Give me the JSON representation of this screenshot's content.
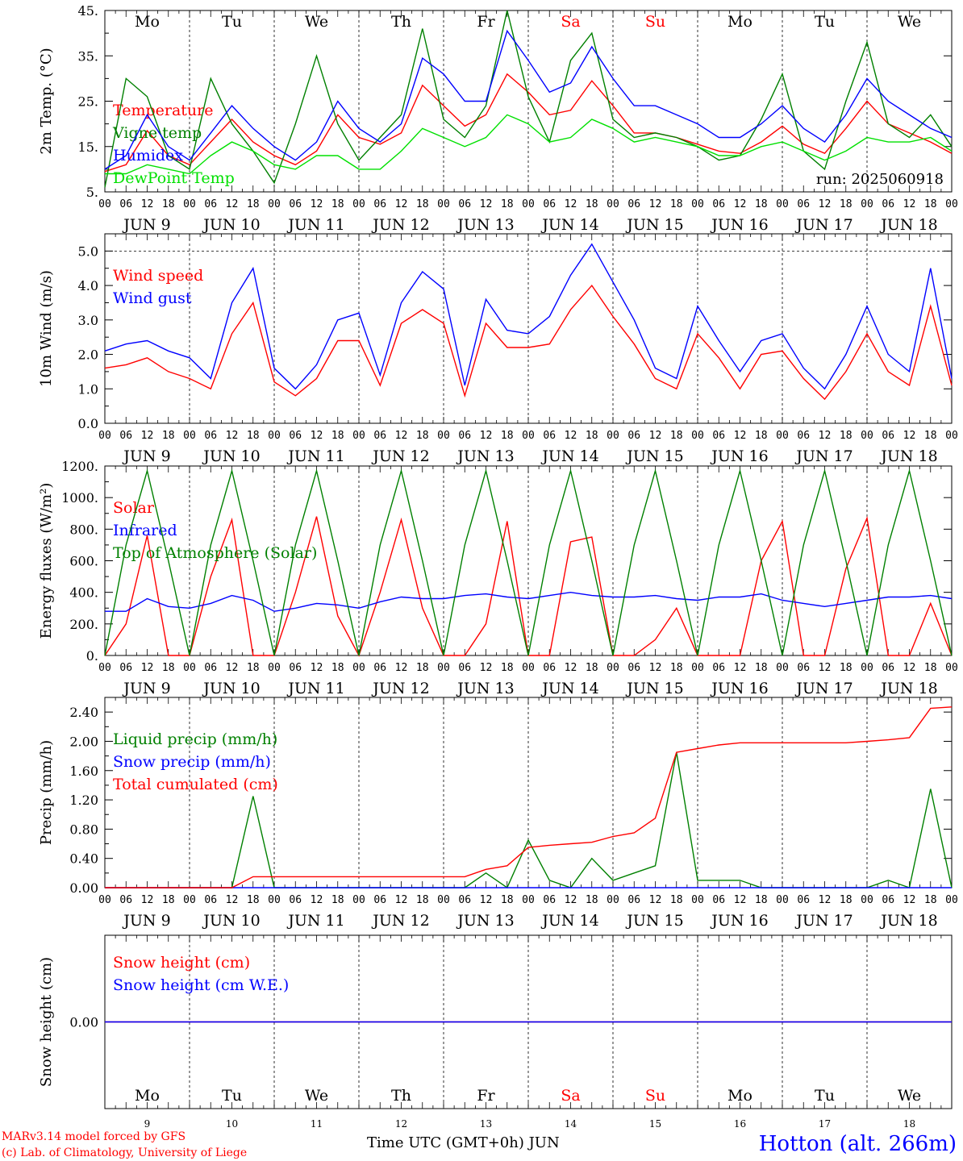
{
  "x_hour_labels": [
    "00",
    "06",
    "12",
    "18"
  ],
  "x_hour_last": "00",
  "date_labels": [
    "JUN  9",
    "JUN 10",
    "JUN 11",
    "JUN 12",
    "JUN 13",
    "JUN 14",
    "JUN 15",
    "JUN 16",
    "JUN 17",
    "JUN 18"
  ],
  "weekdays": [
    {
      "label": "Mo",
      "color": "#000000"
    },
    {
      "label": "Tu",
      "color": "#000000"
    },
    {
      "label": "We",
      "color": "#000000"
    },
    {
      "label": "Th",
      "color": "#000000"
    },
    {
      "label": "Fr",
      "color": "#000000"
    },
    {
      "label": "Sa",
      "color": "#ff0000"
    },
    {
      "label": "Su",
      "color": "#ff0000"
    },
    {
      "label": "Mo",
      "color": "#000000"
    },
    {
      "label": "Tu",
      "color": "#000000"
    },
    {
      "label": "We",
      "color": "#000000"
    }
  ],
  "bottom_day_numbers": [
    "9",
    "10",
    "11",
    "12",
    "13",
    "14",
    "15",
    "16",
    "17",
    "18"
  ],
  "footer": {
    "model": "MARv3.14 model forced by GFS",
    "credit": "(c) Lab. of Climatology, University of Liege",
    "axis_title": "Time UTC (GMT+0h) JUN",
    "station": "Hotton (alt. 266m)"
  },
  "colors": {
    "red": "#ff0000",
    "green": "#008000",
    "blue": "#0000ff",
    "lightgreen": "#00e000"
  },
  "chart_data": [
    {
      "type": "line",
      "ylabel": "2m Temp. (°C)",
      "ylim": [
        5,
        45
      ],
      "yticks": [
        5,
        15,
        25,
        35,
        45
      ],
      "ytick_labels": [
        "5.",
        "15.",
        "25.",
        "35.",
        "45."
      ],
      "run_label": "run: 2025060918",
      "x_hours": [
        0,
        6,
        12,
        18,
        24,
        30,
        36,
        42,
        48,
        54,
        60,
        66,
        72,
        78,
        84,
        90,
        96,
        102,
        108,
        114,
        120,
        126,
        132,
        138,
        144,
        150,
        156,
        162,
        168,
        174,
        180,
        186,
        192,
        198,
        204,
        210,
        216,
        222,
        228,
        234,
        240
      ],
      "series": [
        {
          "name": "Temperature",
          "color": "#ff0000",
          "values": [
            9.5,
            11,
            18.5,
            13,
            11,
            16,
            21,
            16,
            13,
            11,
            14,
            22,
            17,
            15.5,
            18,
            28.5,
            24,
            19.5,
            22,
            31,
            27,
            22,
            23,
            29.5,
            24,
            18,
            18,
            17,
            15.5,
            14,
            13.5,
            16,
            19.5,
            15.5,
            13.5,
            19,
            25,
            20,
            18,
            16,
            13.5
          ]
        },
        {
          "name": "Vigne temp",
          "color": "#008000",
          "values": [
            6,
            30,
            26,
            13,
            10,
            30,
            20,
            14,
            7,
            20,
            35,
            20,
            12,
            17,
            22,
            41,
            21,
            17,
            24,
            45,
            26,
            16,
            34,
            40,
            21,
            17,
            18,
            17,
            15,
            12,
            13,
            21,
            31,
            14,
            10,
            25,
            38,
            20,
            17,
            22,
            15
          ]
        },
        {
          "name": "Humidex",
          "color": "#0000ff",
          "values": [
            10,
            13,
            22,
            15,
            12,
            18,
            24,
            19,
            15,
            12,
            16,
            25,
            19,
            16,
            20,
            34.5,
            31,
            25,
            25,
            40.5,
            34,
            27,
            29,
            37,
            30,
            24,
            24,
            22,
            20,
            17,
            17,
            20,
            24,
            19,
            16,
            22,
            30,
            25,
            22,
            19,
            17
          ]
        },
        {
          "name": "DewPoint Temp",
          "color": "#00e000",
          "values": [
            9,
            9,
            11,
            10,
            9,
            13,
            16,
            14,
            11,
            10,
            13,
            13,
            10,
            10,
            14,
            19,
            17,
            15,
            17,
            22,
            20,
            16,
            17,
            21,
            19,
            16,
            17,
            16,
            15,
            13,
            13,
            15,
            16,
            14,
            12,
            14,
            17,
            16,
            16,
            17,
            14
          ]
        }
      ]
    },
    {
      "type": "line",
      "ylabel": "10m Wind (m/s)",
      "ylim": [
        0,
        5.5
      ],
      "yticks": [
        0,
        1,
        2,
        3,
        4,
        5
      ],
      "ytick_labels": [
        "0.0",
        "1.0",
        "2.0",
        "3.0",
        "4.0",
        "5.0"
      ],
      "x_hours": [
        0,
        6,
        12,
        18,
        24,
        30,
        36,
        42,
        48,
        54,
        60,
        66,
        72,
        78,
        84,
        90,
        96,
        102,
        108,
        114,
        120,
        126,
        132,
        138,
        144,
        150,
        156,
        162,
        168,
        174,
        180,
        186,
        192,
        198,
        204,
        210,
        216,
        222,
        228,
        234,
        240
      ],
      "series": [
        {
          "name": "Wind speed",
          "color": "#ff0000",
          "values": [
            1.6,
            1.7,
            1.9,
            1.5,
            1.3,
            1.0,
            2.6,
            3.5,
            1.2,
            0.8,
            1.3,
            2.4,
            2.4,
            1.1,
            2.9,
            3.3,
            2.9,
            0.8,
            2.9,
            2.2,
            2.2,
            2.3,
            3.3,
            4.0,
            3.1,
            2.3,
            1.3,
            1.0,
            2.6,
            1.9,
            1.0,
            2.0,
            2.1,
            1.3,
            0.7,
            1.5,
            2.6,
            1.5,
            1.1,
            3.4,
            1.1
          ]
        },
        {
          "name": "Wind gust",
          "color": "#0000ff",
          "values": [
            2.1,
            2.3,
            2.4,
            2.1,
            1.9,
            1.3,
            3.5,
            4.5,
            1.6,
            1.0,
            1.7,
            3.0,
            3.2,
            1.4,
            3.5,
            4.4,
            3.9,
            1.1,
            3.6,
            2.7,
            2.6,
            3.1,
            4.3,
            5.2,
            4.1,
            3.0,
            1.6,
            1.3,
            3.4,
            2.4,
            1.5,
            2.4,
            2.6,
            1.6,
            1.0,
            2.0,
            3.4,
            2.0,
            1.5,
            4.5,
            1.3
          ]
        }
      ]
    },
    {
      "type": "line",
      "ylabel": "Energy fluxes (W/m²)",
      "ylim": [
        0,
        1200
      ],
      "yticks": [
        0,
        200,
        400,
        600,
        800,
        1000,
        1200
      ],
      "ytick_labels": [
        "0.",
        "200.",
        "400.",
        "600.",
        "800.",
        "1000.",
        "1200."
      ],
      "x_hours": [
        0,
        6,
        12,
        18,
        24,
        30,
        36,
        42,
        48,
        54,
        60,
        66,
        72,
        78,
        84,
        90,
        96,
        102,
        108,
        114,
        120,
        126,
        132,
        138,
        144,
        150,
        156,
        162,
        168,
        174,
        180,
        186,
        192,
        198,
        204,
        210,
        216,
        222,
        228,
        234,
        240
      ],
      "series": [
        {
          "name": "Solar",
          "color": "#ff0000",
          "values": [
            0,
            200,
            760,
            0,
            0,
            500,
            860,
            0,
            0,
            400,
            880,
            250,
            0,
            400,
            860,
            300,
            0,
            0,
            200,
            850,
            0,
            0,
            720,
            750,
            0,
            0,
            100,
            300,
            0,
            0,
            0,
            600,
            850,
            0,
            0,
            550,
            870,
            0,
            0,
            330,
            0
          ]
        },
        {
          "name": "Infrared",
          "color": "#0000ff",
          "values": [
            280,
            280,
            360,
            310,
            300,
            330,
            380,
            350,
            280,
            300,
            330,
            320,
            300,
            340,
            370,
            360,
            360,
            380,
            390,
            370,
            360,
            380,
            400,
            380,
            370,
            370,
            380,
            360,
            350,
            370,
            370,
            390,
            350,
            330,
            310,
            330,
            350,
            370,
            370,
            380,
            360
          ]
        },
        {
          "name": "Top of Atmosphere (Solar)",
          "color": "#008000",
          "values": [
            0,
            700,
            1170,
            600,
            0,
            700,
            1170,
            600,
            0,
            700,
            1170,
            600,
            0,
            700,
            1170,
            600,
            0,
            700,
            1170,
            600,
            0,
            700,
            1170,
            600,
            0,
            700,
            1170,
            600,
            0,
            700,
            1170,
            600,
            0,
            700,
            1170,
            600,
            0,
            700,
            1170,
            600,
            0
          ]
        }
      ]
    },
    {
      "type": "line",
      "ylabel": "Precip (mm/h)",
      "ylim": [
        0,
        2.6
      ],
      "yticks": [
        0,
        0.4,
        0.8,
        1.2,
        1.6,
        2.0,
        2.4
      ],
      "ytick_labels": [
        "0.00",
        "0.40",
        "0.80",
        "1.20",
        "1.60",
        "2.00",
        "2.40"
      ],
      "x_hours": [
        0,
        6,
        12,
        18,
        24,
        30,
        36,
        42,
        48,
        54,
        60,
        66,
        72,
        78,
        84,
        90,
        96,
        102,
        108,
        114,
        120,
        126,
        132,
        138,
        144,
        150,
        156,
        162,
        168,
        174,
        180,
        186,
        192,
        198,
        204,
        210,
        216,
        222,
        228,
        234,
        240
      ],
      "series": [
        {
          "name": "Liquid precip (mm/h)",
          "color": "#008000",
          "values": [
            0,
            0,
            0,
            0,
            0,
            0,
            0,
            1.25,
            0,
            0,
            0,
            0,
            0,
            0,
            0,
            0,
            0,
            0,
            0.2,
            0,
            0.65,
            0.1,
            0,
            0.4,
            0.1,
            0.2,
            0.3,
            1.85,
            0.1,
            0.1,
            0.1,
            0,
            0,
            0,
            0,
            0,
            0,
            0.1,
            0,
            1.35,
            0
          ]
        },
        {
          "name": "Snow precip (mm/h)",
          "color": "#0000ff",
          "values": [
            0,
            0,
            0,
            0,
            0,
            0,
            0,
            0,
            0,
            0,
            0,
            0,
            0,
            0,
            0,
            0,
            0,
            0,
            0,
            0,
            0,
            0,
            0,
            0,
            0,
            0,
            0,
            0,
            0,
            0,
            0,
            0,
            0,
            0,
            0,
            0,
            0,
            0,
            0,
            0,
            0
          ]
        },
        {
          "name": "Total cumulated (cm)",
          "color": "#ff0000",
          "values": [
            0,
            0,
            0,
            0,
            0,
            0,
            0,
            0.15,
            0.15,
            0.15,
            0.15,
            0.15,
            0.15,
            0.15,
            0.15,
            0.15,
            0.15,
            0.15,
            0.25,
            0.3,
            0.55,
            0.58,
            0.6,
            0.62,
            0.7,
            0.75,
            0.95,
            1.85,
            1.9,
            1.95,
            1.98,
            1.98,
            1.98,
            1.98,
            1.98,
            1.98,
            2.0,
            2.02,
            2.05,
            2.45,
            2.47
          ]
        }
      ]
    },
    {
      "type": "line",
      "ylabel": "Snow height (cm)",
      "ylim": [
        -1,
        1
      ],
      "yticks": [
        0
      ],
      "ytick_labels": [
        "0.00"
      ],
      "x_hours": [
        0,
        240
      ],
      "series": [
        {
          "name": "Snow height (cm)",
          "color": "#ff0000",
          "values": [
            0,
            0
          ]
        },
        {
          "name": "Snow height (cm W.E.)",
          "color": "#0000ff",
          "values": [
            0,
            0
          ]
        }
      ]
    }
  ]
}
